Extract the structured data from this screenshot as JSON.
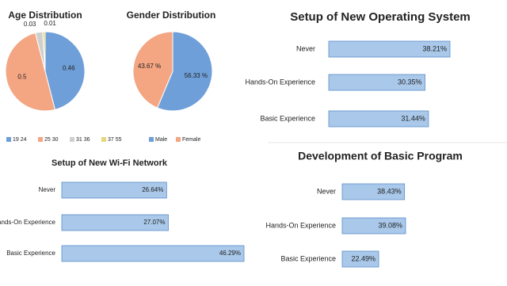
{
  "chart_data": [
    {
      "type": "pie",
      "title": "Age Distribution",
      "categories": [
        "19 24",
        "25 30",
        "31 36",
        "37 55"
      ],
      "values": [
        0.46,
        0.5,
        0.03,
        0.01
      ],
      "colors": [
        "#6f9fd8",
        "#f4a582",
        "#cfcfcf",
        "#e6d77a"
      ]
    },
    {
      "type": "pie",
      "title": "Gender Distribution",
      "categories": [
        "Male",
        "Female"
      ],
      "values": [
        56.33,
        43.67
      ],
      "value_labels": [
        "56.33 %",
        "43.67 %"
      ],
      "colors": [
        "#6f9fd8",
        "#f4a582"
      ]
    },
    {
      "type": "hbar",
      "title": "Setup of New Operating System",
      "categories": [
        "Never",
        "Hands-On Experience",
        "Basic Experience"
      ],
      "values": [
        38.21,
        30.35,
        31.44
      ],
      "value_labels": [
        "38.21%",
        "30.35%",
        "31.44%"
      ],
      "color": "#a9c8ea"
    },
    {
      "type": "hbar",
      "title": "Setup of New Wi-Fi Network",
      "categories": [
        "Never",
        "Hands-On Experience",
        "Basic Experience"
      ],
      "values": [
        26.64,
        27.07,
        46.29
      ],
      "value_labels": [
        "26.64%",
        "27.07%",
        "46.29%"
      ],
      "color": "#a9c8ea"
    },
    {
      "type": "hbar",
      "title": "Development of Basic Program",
      "categories": [
        "Never",
        "Hands-On Experience",
        "Basic Experience"
      ],
      "values": [
        38.43,
        39.08,
        22.49
      ],
      "value_labels": [
        "38.43%",
        "39.08%",
        "22.49%"
      ],
      "color": "#a9c8ea"
    }
  ]
}
